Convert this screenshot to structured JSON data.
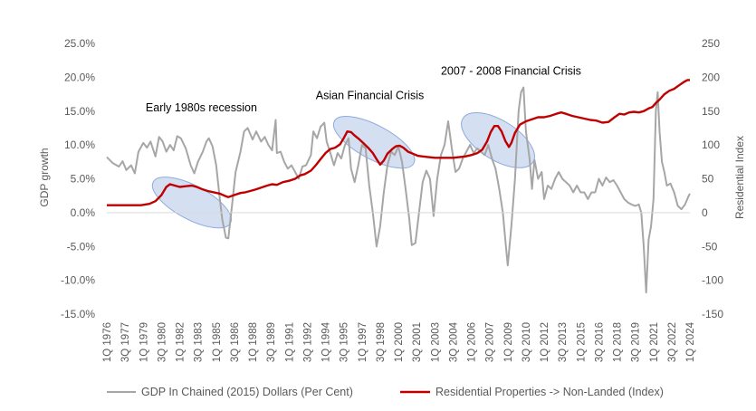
{
  "chart_data": {
    "type": "line",
    "ylabel": "GDP growth",
    "y2label": "Residential Index",
    "ylim": [
      -0.15,
      0.25
    ],
    "y_ticks": [
      "25.0%",
      "20.0%",
      "15.0%",
      "10.0%",
      "5.0%",
      "0.0%",
      "-5.0%",
      "-10.0%",
      "-15.0%"
    ],
    "y2lim": [
      -150,
      250
    ],
    "y2_ticks": [
      "250",
      "200",
      "150",
      "100",
      "50",
      "0",
      "-50",
      "-100",
      "-150"
    ],
    "x_range": [
      1976.0,
      2024.0
    ],
    "x_ticks": [
      "1Q 1976",
      "3Q 1977",
      "1Q 1979",
      "3Q 1980",
      "1Q 1982",
      "3Q 1983",
      "1Q 1985",
      "3Q 1986",
      "1Q 1988",
      "3Q 1989",
      "1Q 1991",
      "3Q 1992",
      "1Q 1994",
      "3Q 1995",
      "1Q 1997",
      "3Q 1998",
      "1Q 2000",
      "3Q 2001",
      "1Q 2003",
      "3Q 2004",
      "1Q 2006",
      "3Q 2007",
      "1Q 2009",
      "3Q 2010",
      "1Q 2012",
      "3Q 2013",
      "1Q 2015",
      "3Q 2016",
      "1Q 2018",
      "3Q 2019",
      "1Q 2021",
      "3Q 2022",
      "1Q 2024"
    ],
    "grid": false,
    "legend_position": "bottom",
    "series": [
      {
        "name": "GDP In Chained (2015) Dollars (Per Cent)",
        "axis": "left",
        "color": "#a6a6a6",
        "points": [
          [
            1976.0,
            0.082
          ],
          [
            1976.5,
            0.073
          ],
          [
            1977.0,
            0.068
          ],
          [
            1977.3,
            0.076
          ],
          [
            1977.6,
            0.063
          ],
          [
            1978.0,
            0.07
          ],
          [
            1978.3,
            0.058
          ],
          [
            1978.6,
            0.09
          ],
          [
            1979.0,
            0.103
          ],
          [
            1979.3,
            0.096
          ],
          [
            1979.6,
            0.105
          ],
          [
            1980.0,
            0.083
          ],
          [
            1980.3,
            0.112
          ],
          [
            1980.6,
            0.105
          ],
          [
            1980.9,
            0.09
          ],
          [
            1981.2,
            0.1
          ],
          [
            1981.5,
            0.092
          ],
          [
            1981.8,
            0.113
          ],
          [
            1982.1,
            0.11
          ],
          [
            1982.5,
            0.095
          ],
          [
            1982.9,
            0.07
          ],
          [
            1983.2,
            0.058
          ],
          [
            1983.5,
            0.075
          ],
          [
            1983.9,
            0.09
          ],
          [
            1984.2,
            0.105
          ],
          [
            1984.4,
            0.11
          ],
          [
            1984.7,
            0.098
          ],
          [
            1985.0,
            0.07
          ],
          [
            1985.3,
            0.02
          ],
          [
            1985.5,
            -0.01
          ],
          [
            1985.8,
            -0.037
          ],
          [
            1986.0,
            -0.038
          ],
          [
            1986.3,
            0.01
          ],
          [
            1986.6,
            0.06
          ],
          [
            1987.0,
            0.09
          ],
          [
            1987.3,
            0.12
          ],
          [
            1987.6,
            0.125
          ],
          [
            1988.0,
            0.108
          ],
          [
            1988.3,
            0.12
          ],
          [
            1988.7,
            0.105
          ],
          [
            1989.0,
            0.112
          ],
          [
            1989.3,
            0.1
          ],
          [
            1989.6,
            0.092
          ],
          [
            1989.9,
            0.137
          ],
          [
            1990.0,
            0.088
          ],
          [
            1990.3,
            0.09
          ],
          [
            1990.6,
            0.075
          ],
          [
            1990.9,
            0.065
          ],
          [
            1991.2,
            0.07
          ],
          [
            1991.5,
            0.06
          ],
          [
            1991.8,
            0.05
          ],
          [
            1992.1,
            0.068
          ],
          [
            1992.4,
            0.07
          ],
          [
            1992.8,
            0.085
          ],
          [
            1993.0,
            0.12
          ],
          [
            1993.3,
            0.11
          ],
          [
            1993.6,
            0.127
          ],
          [
            1993.9,
            0.133
          ],
          [
            1994.1,
            0.105
          ],
          [
            1994.4,
            0.088
          ],
          [
            1994.7,
            0.07
          ],
          [
            1995.0,
            0.088
          ],
          [
            1995.3,
            0.08
          ],
          [
            1995.6,
            0.1
          ],
          [
            1995.9,
            0.11
          ],
          [
            1996.1,
            0.065
          ],
          [
            1996.4,
            0.045
          ],
          [
            1996.7,
            0.07
          ],
          [
            1997.0,
            0.1
          ],
          [
            1997.3,
            0.095
          ],
          [
            1997.6,
            0.04
          ],
          [
            1997.9,
            0.0
          ],
          [
            1998.2,
            -0.05
          ],
          [
            1998.5,
            -0.02
          ],
          [
            1998.8,
            0.03
          ],
          [
            1999.1,
            0.07
          ],
          [
            1999.4,
            0.09
          ],
          [
            1999.7,
            0.085
          ],
          [
            2000.0,
            0.098
          ],
          [
            2000.3,
            0.075
          ],
          [
            2000.6,
            0.035
          ],
          [
            2000.9,
            -0.01
          ],
          [
            2001.1,
            -0.048
          ],
          [
            2001.4,
            -0.045
          ],
          [
            2001.7,
            0.0
          ],
          [
            2002.0,
            0.045
          ],
          [
            2002.3,
            0.062
          ],
          [
            2002.6,
            0.05
          ],
          [
            2002.9,
            -0.005
          ],
          [
            2003.2,
            0.05
          ],
          [
            2003.5,
            0.085
          ],
          [
            2003.8,
            0.1
          ],
          [
            2004.1,
            0.135
          ],
          [
            2004.4,
            0.095
          ],
          [
            2004.7,
            0.06
          ],
          [
            2005.0,
            0.065
          ],
          [
            2005.3,
            0.08
          ],
          [
            2005.6,
            0.09
          ],
          [
            2005.9,
            0.1
          ],
          [
            2006.2,
            0.088
          ],
          [
            2006.5,
            0.095
          ],
          [
            2006.8,
            0.09
          ],
          [
            2007.1,
            0.085
          ],
          [
            2007.4,
            0.1
          ],
          [
            2007.7,
            0.08
          ],
          [
            2008.0,
            0.065
          ],
          [
            2008.3,
            0.035
          ],
          [
            2008.6,
            0.0
          ],
          [
            2008.8,
            -0.04
          ],
          [
            2009.0,
            -0.078
          ],
          [
            2009.3,
            -0.02
          ],
          [
            2009.6,
            0.05
          ],
          [
            2009.9,
            0.15
          ],
          [
            2010.1,
            0.178
          ],
          [
            2010.3,
            0.185
          ],
          [
            2010.5,
            0.12
          ],
          [
            2010.8,
            0.08
          ],
          [
            2011.0,
            0.035
          ],
          [
            2011.2,
            0.078
          ],
          [
            2011.5,
            0.05
          ],
          [
            2011.8,
            0.06
          ],
          [
            2012.0,
            0.02
          ],
          [
            2012.3,
            0.04
          ],
          [
            2012.6,
            0.035
          ],
          [
            2012.9,
            0.05
          ],
          [
            2013.2,
            0.06
          ],
          [
            2013.5,
            0.05
          ],
          [
            2013.8,
            0.045
          ],
          [
            2014.1,
            0.04
          ],
          [
            2014.4,
            0.03
          ],
          [
            2014.7,
            0.04
          ],
          [
            2015.0,
            0.03
          ],
          [
            2015.3,
            0.03
          ],
          [
            2015.6,
            0.02
          ],
          [
            2015.9,
            0.03
          ],
          [
            2016.2,
            0.03
          ],
          [
            2016.5,
            0.05
          ],
          [
            2016.8,
            0.04
          ],
          [
            2017.1,
            0.052
          ],
          [
            2017.4,
            0.045
          ],
          [
            2017.7,
            0.048
          ],
          [
            2018.0,
            0.04
          ],
          [
            2018.3,
            0.03
          ],
          [
            2018.6,
            0.02
          ],
          [
            2018.9,
            0.015
          ],
          [
            2019.2,
            0.012
          ],
          [
            2019.5,
            0.01
          ],
          [
            2019.8,
            0.012
          ],
          [
            2020.0,
            0.0
          ],
          [
            2020.2,
            -0.05
          ],
          [
            2020.4,
            -0.118
          ],
          [
            2020.6,
            -0.04
          ],
          [
            2020.8,
            -0.02
          ],
          [
            2021.0,
            0.02
          ],
          [
            2021.2,
            0.15
          ],
          [
            2021.35,
            0.178
          ],
          [
            2021.5,
            0.12
          ],
          [
            2021.7,
            0.075
          ],
          [
            2021.9,
            0.06
          ],
          [
            2022.1,
            0.04
          ],
          [
            2022.4,
            0.043
          ],
          [
            2022.7,
            0.03
          ],
          [
            2023.0,
            0.01
          ],
          [
            2023.3,
            0.005
          ],
          [
            2023.6,
            0.012
          ],
          [
            2023.9,
            0.025
          ],
          [
            2024.0,
            0.028
          ]
        ]
      },
      {
        "name": "Residential Properties -> Non-Landed (Index)",
        "axis": "right",
        "color": "#c00000",
        "points": [
          [
            1976.0,
            11
          ],
          [
            1977.0,
            11
          ],
          [
            1978.0,
            11
          ],
          [
            1978.8,
            11
          ],
          [
            1979.5,
            13
          ],
          [
            1980.0,
            17
          ],
          [
            1980.5,
            26
          ],
          [
            1980.9,
            38
          ],
          [
            1981.2,
            42
          ],
          [
            1981.6,
            40
          ],
          [
            1982.0,
            38
          ],
          [
            1982.5,
            39
          ],
          [
            1983.0,
            40
          ],
          [
            1983.4,
            38
          ],
          [
            1983.8,
            35
          ],
          [
            1984.3,
            32
          ],
          [
            1984.8,
            30
          ],
          [
            1985.3,
            28
          ],
          [
            1985.7,
            25
          ],
          [
            1986.0,
            23
          ],
          [
            1986.5,
            26
          ],
          [
            1987.0,
            29
          ],
          [
            1987.4,
            30
          ],
          [
            1987.8,
            32
          ],
          [
            1988.2,
            34
          ],
          [
            1988.7,
            37
          ],
          [
            1989.2,
            40
          ],
          [
            1989.6,
            42
          ],
          [
            1990.0,
            41
          ],
          [
            1990.5,
            45
          ],
          [
            1991.0,
            47
          ],
          [
            1991.5,
            50
          ],
          [
            1991.9,
            55
          ],
          [
            1992.3,
            57
          ],
          [
            1992.8,
            62
          ],
          [
            1993.2,
            70
          ],
          [
            1993.6,
            79
          ],
          [
            1994.0,
            88
          ],
          [
            1994.4,
            94
          ],
          [
            1994.8,
            96
          ],
          [
            1995.2,
            101
          ],
          [
            1995.5,
            110
          ],
          [
            1995.8,
            120
          ],
          [
            1996.1,
            119
          ],
          [
            1996.4,
            114
          ],
          [
            1996.8,
            108
          ],
          [
            1997.1,
            103
          ],
          [
            1997.5,
            96
          ],
          [
            1997.9,
            88
          ],
          [
            1998.2,
            79
          ],
          [
            1998.5,
            71
          ],
          [
            1998.8,
            77
          ],
          [
            1999.1,
            87
          ],
          [
            1999.5,
            94
          ],
          [
            1999.8,
            98
          ],
          [
            2000.1,
            99
          ],
          [
            2000.4,
            96
          ],
          [
            2000.8,
            90
          ],
          [
            2001.2,
            87
          ],
          [
            2001.6,
            84
          ],
          [
            2002.0,
            83
          ],
          [
            2002.5,
            82
          ],
          [
            2003.0,
            81
          ],
          [
            2003.5,
            81
          ],
          [
            2004.0,
            81
          ],
          [
            2004.5,
            81
          ],
          [
            2005.0,
            82
          ],
          [
            2005.5,
            83
          ],
          [
            2006.0,
            85
          ],
          [
            2006.5,
            88
          ],
          [
            2006.9,
            93
          ],
          [
            2007.3,
            105
          ],
          [
            2007.6,
            119
          ],
          [
            2007.9,
            128
          ],
          [
            2008.2,
            128
          ],
          [
            2008.5,
            120
          ],
          [
            2008.8,
            106
          ],
          [
            2009.1,
            97
          ],
          [
            2009.3,
            103
          ],
          [
            2009.6,
            118
          ],
          [
            2010.0,
            130
          ],
          [
            2010.5,
            135
          ],
          [
            2011.0,
            138
          ],
          [
            2011.5,
            141
          ],
          [
            2012.0,
            141
          ],
          [
            2012.5,
            143
          ],
          [
            2013.0,
            146
          ],
          [
            2013.4,
            148
          ],
          [
            2013.8,
            146
          ],
          [
            2014.3,
            143
          ],
          [
            2014.8,
            141
          ],
          [
            2015.3,
            139
          ],
          [
            2015.8,
            137
          ],
          [
            2016.3,
            136
          ],
          [
            2016.8,
            133
          ],
          [
            2017.3,
            134
          ],
          [
            2017.8,
            141
          ],
          [
            2018.2,
            146
          ],
          [
            2018.6,
            145
          ],
          [
            2019.0,
            148
          ],
          [
            2019.4,
            149
          ],
          [
            2019.8,
            148
          ],
          [
            2020.2,
            150
          ],
          [
            2020.6,
            154
          ],
          [
            2020.9,
            156
          ],
          [
            2021.2,
            162
          ],
          [
            2021.5,
            167
          ],
          [
            2021.9,
            175
          ],
          [
            2022.3,
            180
          ],
          [
            2022.7,
            183
          ],
          [
            2023.1,
            188
          ],
          [
            2023.5,
            193
          ],
          [
            2023.8,
            196
          ],
          [
            2024.0,
            196
          ]
        ]
      }
    ],
    "annotations": [
      {
        "text": "Early 1980s recession",
        "x": 1979.2,
        "y2": 150
      },
      {
        "text": "Asian Financial Crisis",
        "x": 1993.2,
        "y2": 168
      },
      {
        "text": "2007 - 2008 Financial Crisis",
        "x": 2003.5,
        "y2": 204
      }
    ],
    "highlights": [
      {
        "cx": 1983.0,
        "cy2": 15,
        "rx_years": 3.6,
        "ry_index": 25,
        "angle": 28
      },
      {
        "cx": 1998.0,
        "cy2": 104,
        "rx_years": 3.7,
        "ry_index": 25,
        "angle": 28
      },
      {
        "cx": 2008.2,
        "cy2": 107,
        "rx_years": 3.4,
        "ry_index": 29,
        "angle": 32
      }
    ]
  }
}
